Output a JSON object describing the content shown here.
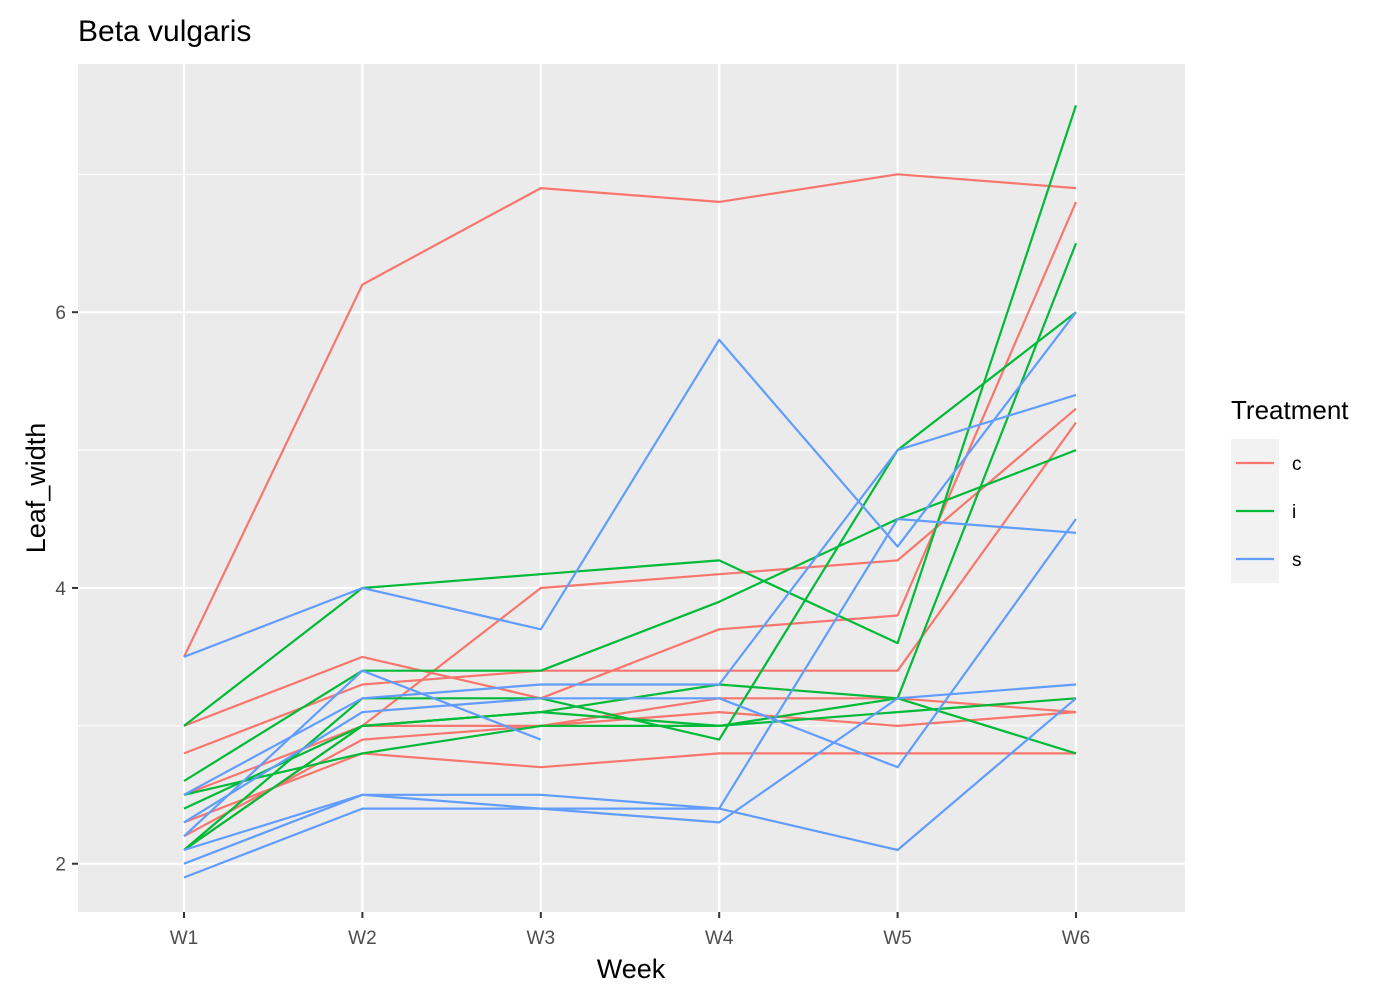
{
  "chart_data": {
    "type": "line",
    "title": "Beta vulgaris",
    "xlabel": "Week",
    "ylabel": "Leaf_width",
    "categories": [
      "W1",
      "W2",
      "W3",
      "W4",
      "W5",
      "W6"
    ],
    "ylim": [
      1.65,
      7.8
    ],
    "yticks": [
      2,
      4,
      6
    ],
    "grid": true,
    "legend": {
      "title": "Treatment",
      "placement": "right",
      "items": [
        {
          "label": "c",
          "color": "#F8766D"
        },
        {
          "label": "i",
          "color": "#00BA38"
        },
        {
          "label": "s",
          "color": "#619CFF"
        }
      ]
    },
    "series": [
      {
        "group": "c",
        "values": [
          3.5,
          6.2,
          6.9,
          6.8,
          7.0,
          6.9
        ]
      },
      {
        "group": "c",
        "values": [
          3.0,
          3.5,
          3.2,
          3.7,
          3.8,
          6.8
        ]
      },
      {
        "group": "c",
        "values": [
          2.8,
          3.3,
          3.4,
          3.4,
          3.4,
          5.2
        ]
      },
      {
        "group": "c",
        "values": [
          2.5,
          3.0,
          4.0,
          4.1,
          4.2,
          5.3
        ]
      },
      {
        "group": "c",
        "values": [
          2.2,
          2.9,
          3.0,
          3.1,
          3.0,
          3.1
        ]
      },
      {
        "group": "c",
        "values": [
          2.3,
          2.8,
          2.7,
          2.8,
          2.8,
          2.8
        ]
      },
      {
        "group": "c",
        "values": [
          2.1,
          3.0,
          3.0,
          3.2,
          3.2,
          3.1
        ]
      },
      {
        "group": "i",
        "values": [
          3.0,
          4.0,
          4.1,
          4.2,
          3.6,
          7.5
        ]
      },
      {
        "group": "i",
        "values": [
          2.6,
          3.4,
          3.4,
          3.9,
          4.5,
          5.0
        ]
      },
      {
        "group": "i",
        "values": [
          2.5,
          2.8,
          3.0,
          3.0,
          3.1,
          3.2
        ]
      },
      {
        "group": "i",
        "values": [
          2.4,
          3.0,
          3.1,
          3.3,
          3.2,
          2.8
        ]
      },
      {
        "group": "i",
        "values": [
          2.1,
          3.2,
          3.2,
          2.9,
          5.0,
          6.0
        ]
      },
      {
        "group": "i",
        "values": [
          2.1,
          3.0,
          3.1,
          3.0,
          3.2,
          6.5
        ]
      },
      {
        "group": "s",
        "values": [
          3.5,
          4.0,
          3.7,
          5.8,
          4.3,
          6.0
        ]
      },
      {
        "group": "s",
        "values": [
          2.5,
          3.2,
          3.3,
          3.3,
          5.0,
          5.4
        ]
      },
      {
        "group": "s",
        "values": [
          2.3,
          3.1,
          3.2,
          3.2,
          2.7,
          4.5
        ]
      },
      {
        "group": "s",
        "values": [
          2.2,
          3.4,
          2.9,
          null,
          null,
          null
        ]
      },
      {
        "group": "s",
        "values": [
          2.1,
          2.5,
          2.5,
          2.4,
          4.5,
          4.4
        ]
      },
      {
        "group": "s",
        "values": [
          2.0,
          2.5,
          2.4,
          2.3,
          3.2,
          3.3
        ]
      },
      {
        "group": "s",
        "values": [
          1.9,
          2.4,
          2.4,
          2.4,
          2.1,
          3.2
        ]
      }
    ]
  }
}
